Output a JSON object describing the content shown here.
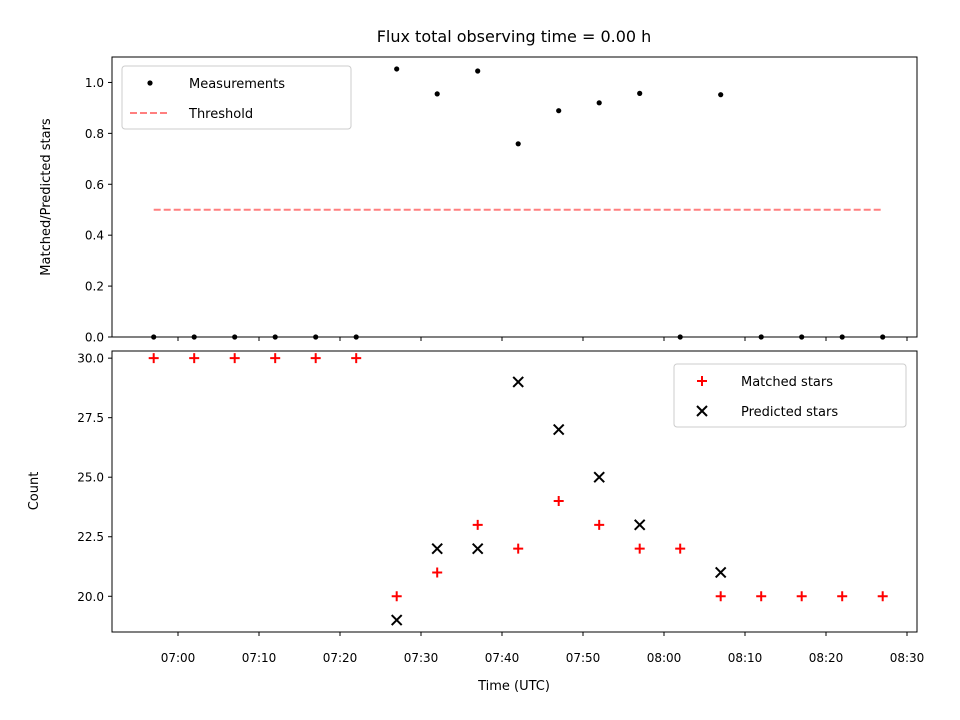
{
  "chart_data": {
    "type": "scatter",
    "title": "Flux total observing time = 0.00 h",
    "xlabel": "Time (UTC)",
    "x_tick_labels": [
      "07:00",
      "07:10",
      "07:20",
      "07:30",
      "07:40",
      "07:50",
      "08:00",
      "08:10",
      "08:20",
      "08:30"
    ],
    "x": [
      "06:57",
      "07:02",
      "07:07",
      "07:12",
      "07:17",
      "07:22",
      "07:27",
      "07:32",
      "07:37",
      "07:42",
      "07:47",
      "07:52",
      "07:57",
      "08:02",
      "08:07",
      "08:12",
      "08:17",
      "08:22",
      "08:27"
    ],
    "panels": [
      {
        "ylabel": "Matched/Predicted stars",
        "ylim": [
          0,
          1.1
        ],
        "y_tick_labels": [
          "0.0",
          "0.2",
          "0.4",
          "0.6",
          "0.8",
          "1.0"
        ],
        "legend_position": "top-left",
        "series": [
          {
            "name": "Measurements",
            "marker": "dot",
            "color": "#000000",
            "values": [
              0,
              0,
              0,
              0,
              0,
              0,
              1.053,
              0.955,
              1.045,
              0.759,
              0.889,
              0.92,
              0.957,
              0,
              0.952,
              0,
              0,
              0,
              0
            ]
          },
          {
            "name": "Threshold",
            "style": "dashed-line",
            "color": "#ff7f7f",
            "x_range": [
              "06:57",
              "08:27"
            ],
            "value": 0.5
          }
        ]
      },
      {
        "ylabel": "Count",
        "ylim": [
          18.5,
          30.3
        ],
        "y_tick_labels": [
          "20.0",
          "22.5",
          "25.0",
          "27.5",
          "30.0"
        ],
        "legend_position": "top-right",
        "series": [
          {
            "name": "Matched stars",
            "marker": "plus",
            "color": "#ff0000",
            "values": [
              30,
              30,
              30,
              30,
              30,
              30,
              20,
              21,
              23,
              22,
              24,
              23,
              22,
              22,
              20,
              20,
              20,
              20,
              20
            ]
          },
          {
            "name": "Predicted stars",
            "marker": "x",
            "color": "#000000",
            "values": [
              null,
              null,
              null,
              null,
              null,
              null,
              19,
              22,
              22,
              29,
              27,
              25,
              23,
              null,
              21,
              null,
              null,
              null,
              null
            ]
          }
        ]
      }
    ]
  }
}
